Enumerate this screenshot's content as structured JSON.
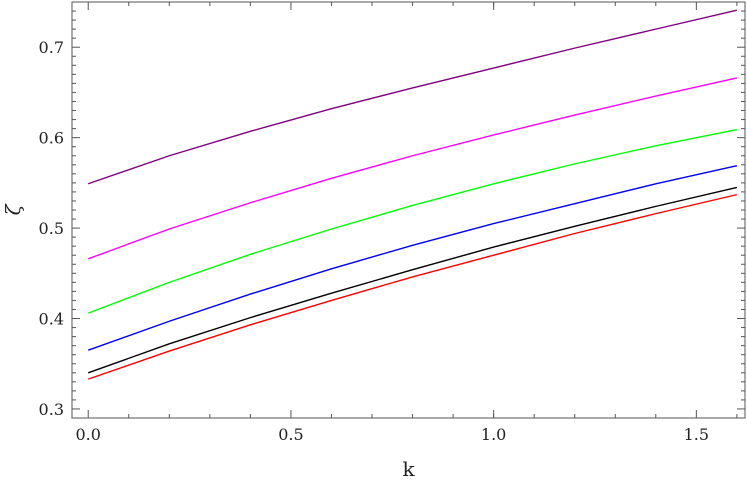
{
  "chart_data": {
    "type": "line",
    "xlabel": "k",
    "ylabel": "ζ",
    "xlim": [
      -0.04,
      1.62
    ],
    "ylim": [
      0.29,
      0.75
    ],
    "xticks": [
      0.0,
      0.5,
      1.0,
      1.5
    ],
    "xtick_labels": [
      "0.0",
      "0.5",
      "1.0",
      "1.5"
    ],
    "yticks": [
      0.3,
      0.4,
      0.5,
      0.6,
      0.7
    ],
    "ytick_labels": [
      "0.3",
      "0.4",
      "0.5",
      "0.6",
      "0.7"
    ],
    "grid": false,
    "x": [
      0.0,
      0.2,
      0.4,
      0.6,
      0.8,
      1.0,
      1.2,
      1.4,
      1.6
    ],
    "series": [
      {
        "color": "#800080",
        "values": [
          0.549,
          0.58,
          0.607,
          0.632,
          0.655,
          0.677,
          0.699,
          0.72,
          0.741
        ]
      },
      {
        "color": "#ff00ff",
        "values": [
          0.466,
          0.499,
          0.528,
          0.555,
          0.58,
          0.603,
          0.625,
          0.646,
          0.666
        ]
      },
      {
        "color": "#00ff00",
        "values": [
          0.406,
          0.44,
          0.471,
          0.499,
          0.525,
          0.549,
          0.571,
          0.591,
          0.609
        ]
      },
      {
        "color": "#0000ff",
        "values": [
          0.365,
          0.397,
          0.427,
          0.455,
          0.481,
          0.505,
          0.527,
          0.549,
          0.569
        ]
      },
      {
        "color": "#000000",
        "values": [
          0.34,
          0.372,
          0.401,
          0.428,
          0.454,
          0.479,
          0.502,
          0.524,
          0.545
        ]
      },
      {
        "color": "#ff0000",
        "values": [
          0.333,
          0.364,
          0.393,
          0.42,
          0.446,
          0.47,
          0.494,
          0.516,
          0.537
        ]
      }
    ]
  }
}
